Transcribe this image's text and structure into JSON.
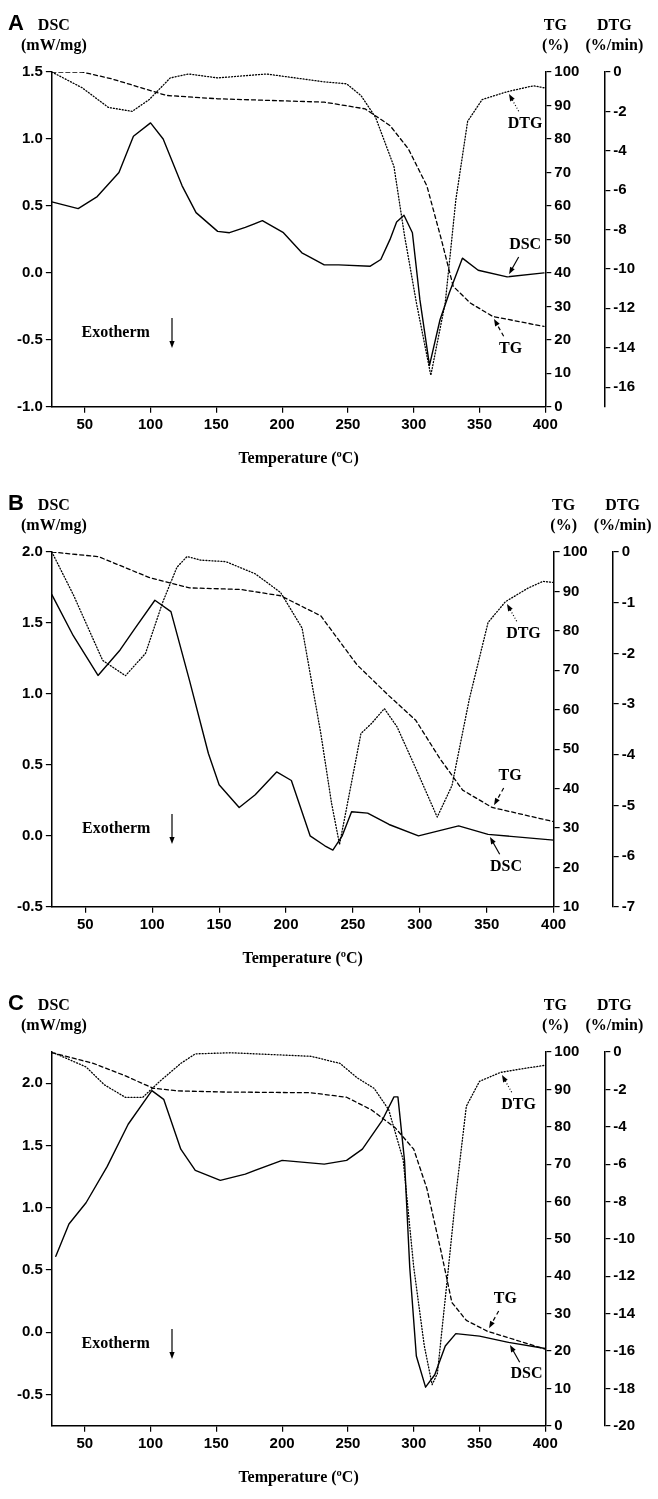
{
  "chart_data": [
    {
      "type": "line",
      "title": "A",
      "xlabel": "Temperature (ºC)",
      "ylabel": "DSC (mW/mg)",
      "y2label": "TG (%)",
      "y3label": "DTG (%/min)",
      "marker": "none",
      "legend": "right",
      "xlim": [
        25,
        400
      ],
      "xticks": [
        50,
        100,
        150,
        200,
        250,
        300,
        350,
        400
      ],
      "ylim": [
        -1,
        1.5
      ],
      "yticks": [
        {
          "value": -1,
          "label": "-1.0"
        },
        -0.5,
        {
          "value": 0,
          "label": "0.0"
        },
        0.5,
        {
          "value": 1,
          "label": "1.0"
        },
        1.5
      ],
      "y2lim": [
        0,
        100
      ],
      "y2ticks": [
        0,
        10,
        20,
        30,
        40,
        50,
        60,
        70,
        80,
        90,
        100
      ],
      "y3lim": [
        -17,
        0
      ],
      "y3ticks": [
        0,
        -2,
        -4,
        -6,
        -8,
        -10,
        -12,
        -14,
        -16
      ],
      "annotations": [
        "Exotherm"
      ],
      "series": [
        {
          "name": "DSC",
          "color": "#000000",
          "line_style": "solid",
          "axis": "y",
          "x": [
            25,
            45,
            59.5,
            76,
            87,
            100,
            109.6,
            124,
            134.6,
            151,
            160,
            172,
            185,
            201,
            215,
            232,
            243,
            267,
            275,
            282,
            287,
            292.6,
            299,
            304.7,
            312,
            320,
            327,
            337,
            349,
            371,
            399
          ],
          "values": [
            0.53,
            0.48,
            0.57,
            0.75,
            1.02,
            1.12,
            1.0,
            0.65,
            0.45,
            0.31,
            0.3,
            0.34,
            0.39,
            0.3,
            0.15,
            0.06,
            0.06,
            0.05,
            0.1,
            0.25,
            0.38,
            0.43,
            0.3,
            -0.2,
            -0.69,
            -0.35,
            -0.15,
            0.11,
            0.02,
            -0.03,
            0.0
          ]
        },
        {
          "name": "TG",
          "color": "#000000",
          "line_style": "dashed",
          "axis": "y2",
          "x": [
            25,
            48,
            70,
            87,
            112,
            151,
            232,
            263,
            282,
            296,
            310,
            321,
            330,
            343,
            360,
            399
          ],
          "values": [
            100,
            100,
            98,
            96,
            93,
            92,
            91,
            89,
            84,
            77,
            66,
            50,
            36,
            31,
            27,
            24
          ]
        },
        {
          "name": "DTG",
          "color": "#000000",
          "line_style": "dotted",
          "axis": "y3",
          "x": [
            25,
            48,
            68,
            86,
            99,
            115,
            129,
            151,
            188,
            232,
            249,
            260,
            271,
            285,
            293,
            302,
            313,
            324,
            332,
            341,
            352,
            371,
            391,
            399
          ],
          "values": [
            0,
            -0.8,
            -1.8,
            -2.0,
            -1.4,
            -0.3,
            -0.1,
            -0.3,
            -0.1,
            -0.5,
            -0.6,
            -1.2,
            -2.3,
            -4.8,
            -8.3,
            -11.7,
            -15.4,
            -11.7,
            -6.5,
            -2.5,
            -1.4,
            -1.0,
            -0.7,
            -0.8
          ]
        }
      ]
    },
    {
      "type": "line",
      "title": "B",
      "xlabel": "Temperature (ºC)",
      "ylabel": "DSC (mW/mg)",
      "y2label": "TG (%)",
      "y3label": "DTG (%/min)",
      "marker": "none",
      "legend": "right",
      "xlim": [
        25,
        400
      ],
      "xticks": [
        50,
        100,
        150,
        200,
        250,
        300,
        350,
        400
      ],
      "ylim": [
        -0.5,
        2
      ],
      "yticks": [
        -0.5,
        {
          "value": 0,
          "label": "0.0"
        },
        0.5,
        {
          "value": 1,
          "label": "1.0"
        },
        1.5,
        {
          "value": 2,
          "label": "2.0"
        }
      ],
      "y2lim": [
        10,
        100
      ],
      "y2ticks": [
        10,
        20,
        30,
        40,
        50,
        60,
        70,
        80,
        90,
        100
      ],
      "y3lim": [
        -7,
        0
      ],
      "y3ticks": [
        0,
        -1,
        -2,
        -3,
        -4,
        -5,
        -6,
        -7
      ],
      "annotations": [
        "Exotherm"
      ],
      "series": [
        {
          "name": "DSC",
          "color": "#000000",
          "line_style": "solid",
          "axis": "y",
          "x": [
            25,
            41,
            59.5,
            76,
            87,
            102,
            114,
            128,
            142,
            150,
            165,
            177,
            193,
            204,
            218,
            229,
            235,
            242,
            249,
            261,
            277,
            299,
            329,
            351,
            400
          ],
          "values": [
            1.7,
            1.41,
            1.13,
            1.31,
            1.46,
            1.66,
            1.58,
            1.09,
            0.58,
            0.36,
            0.2,
            0.29,
            0.45,
            0.39,
            0.0,
            -0.07,
            -0.1,
            0.0,
            0.17,
            0.16,
            0.08,
            0.0,
            0.07,
            0.01,
            -0.03
          ]
        },
        {
          "name": "TG",
          "color": "#000000",
          "line_style": "dashed",
          "axis": "y2",
          "x": [
            25,
            60,
            98,
            128,
            166,
            196,
            226,
            253,
            277,
            297,
            315,
            332,
            354,
            400
          ],
          "values": [
            100,
            98.8,
            93.5,
            90.9,
            90.5,
            88.9,
            83.8,
            71.4,
            63.5,
            57.3,
            47.6,
            39.6,
            35.2,
            31.6
          ]
        },
        {
          "name": "DTG",
          "color": "#000000",
          "line_style": "dotted",
          "axis": "y3",
          "x": [
            25,
            41,
            63,
            80,
            95,
            108,
            118.5,
            126,
            136,
            155,
            177,
            196,
            212,
            226,
            234,
            240,
            246,
            256,
            264,
            273.5,
            283,
            297,
            313,
            324,
            337,
            351,
            364,
            381,
            392,
            400
          ],
          "values": [
            0,
            -0.84,
            -2.14,
            -2.44,
            -2.0,
            -0.98,
            -0.3,
            -0.09,
            -0.16,
            -0.19,
            -0.43,
            -0.8,
            -1.5,
            -3.58,
            -4.95,
            -5.77,
            -4.95,
            -3.58,
            -3.38,
            -3.09,
            -3.45,
            -4.27,
            -5.23,
            -4.61,
            -2.9,
            -1.39,
            -0.98,
            -0.71,
            -0.58,
            -0.6
          ]
        }
      ]
    },
    {
      "type": "line",
      "title": "C",
      "xlabel": "Temperature (ºC)",
      "ylabel": "DSC (mW/mg)",
      "y2label": "TG (%)",
      "y3label": "DTG (%/min)",
      "marker": "none",
      "legend": "right",
      "xlim": [
        25,
        400
      ],
      "xticks": [
        50,
        100,
        150,
        200,
        250,
        300,
        350,
        400
      ],
      "ylim": [
        -0.75,
        2.25
      ],
      "yticks": [
        -0.5,
        {
          "value": 0,
          "label": "0.0"
        },
        0.5,
        {
          "value": 1,
          "label": "1.0"
        },
        1.5,
        {
          "value": 2,
          "label": "2.0"
        }
      ],
      "y2lim": [
        0,
        100
      ],
      "y2ticks": [
        0,
        10,
        20,
        30,
        40,
        50,
        60,
        70,
        80,
        90,
        100
      ],
      "y3lim": [
        -20,
        0
      ],
      "y3ticks": [
        0,
        -2,
        -4,
        -6,
        -8,
        -10,
        -12,
        -14,
        -16,
        -18,
        -20
      ],
      "annotations": [
        "Exotherm"
      ],
      "series": [
        {
          "name": "DSC",
          "color": "#000000",
          "line_style": "solid",
          "axis": "y",
          "x": [
            28,
            38,
            51,
            67,
            83,
            101,
            110,
            123,
            134,
            153,
            172,
            200,
            232,
            249,
            261,
            276,
            285,
            288,
            293,
            297,
            302,
            309,
            316,
            324,
            332,
            350,
            372,
            400
          ],
          "values": [
            0.61,
            0.87,
            1.04,
            1.33,
            1.67,
            1.94,
            1.87,
            1.47,
            1.3,
            1.22,
            1.27,
            1.38,
            1.35,
            1.38,
            1.47,
            1.7,
            1.89,
            1.89,
            1.38,
            0.52,
            -0.19,
            -0.44,
            -0.34,
            -0.11,
            -0.01,
            -0.03,
            -0.08,
            -0.13
          ]
        },
        {
          "name": "TG",
          "color": "#000000",
          "line_style": "dashed",
          "axis": "y2",
          "x": [
            25,
            57,
            81,
            102,
            121,
            155,
            222,
            249,
            268,
            286,
            300,
            310,
            321,
            329,
            340,
            356,
            400
          ],
          "values": [
            99.8,
            96.9,
            93.6,
            90.3,
            89.6,
            89.3,
            89.1,
            87.9,
            84.5,
            79.7,
            74,
            63.5,
            46.3,
            33,
            28.2,
            25.3,
            20.5
          ]
        },
        {
          "name": "DTG",
          "color": "#000000",
          "line_style": "dotted",
          "axis": "y3",
          "x": [
            25,
            51,
            65,
            81,
            94,
            107,
            123,
            134,
            161,
            222,
            244,
            257,
            270,
            281,
            292,
            300,
            308,
            314,
            318,
            325,
            332,
            340,
            350,
            366,
            382,
            400
          ],
          "values": [
            0,
            -0.8,
            -1.76,
            -2.43,
            -2.43,
            -1.57,
            -0.61,
            -0.1,
            -0.04,
            -0.23,
            -0.61,
            -1.38,
            -1.95,
            -3.09,
            -5.77,
            -11.5,
            -15.7,
            -17.8,
            -17.2,
            -12.5,
            -7.68,
            -2.9,
            -1.57,
            -1.09,
            -0.9,
            -0.71
          ]
        }
      ]
    }
  ]
}
